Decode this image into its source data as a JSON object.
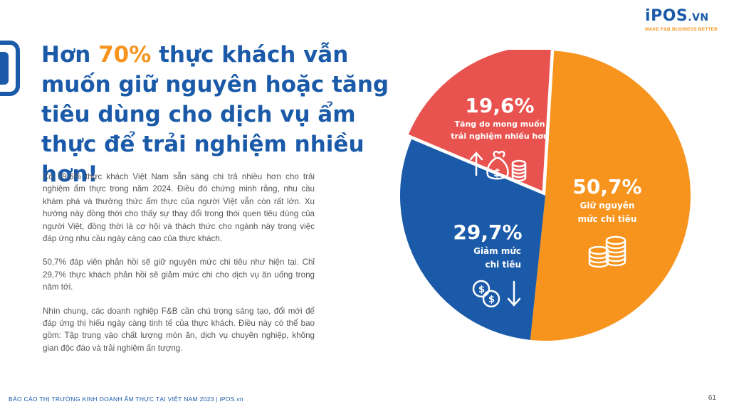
{
  "brand": {
    "logo_text": "iPOS",
    "logo_suffix": ".VN",
    "tagline": "MAKE F&B BUSINESS BETTER"
  },
  "headline": {
    "part1": "Hơn ",
    "highlight": "70%",
    "part2": " thực khách vẫn muốn giữ nguyên hoặc tăng tiêu dùng cho dịch vụ ẩm thực để trải nghiệm nhiều hơn!"
  },
  "body": {
    "p1": "Có 19,6% thực khách Việt Nam sẵn sàng chi trả nhiều hơn cho trải nghiệm ẩm thực trong năm 2024. Điều đó chứng minh rằng, nhu cầu khám phá và thưởng thức ẩm thực của người Việt vẫn còn rất lớn. Xu hướng này đồng thời cho thấy sự thay đổi trong thói quen tiêu dùng của người Việt, đồng thời là cơ hội và thách thức cho ngành này trong việc đáp ứng nhu cầu ngày càng cao của thực khách.",
    "p2": "50,7% đáp viên phản hồi sẽ giữ nguyên mức chi tiêu như hiện tại. Chỉ 29,7% thực khách phản hồi sẽ giảm mức chi cho dịch vụ ăn uống trong năm tới.",
    "p3": "Nhìn chung, các doanh nghiệp F&B cần chú trọng sáng tạo, đổi mới để đáp ứng thị hiếu ngày càng tinh tế của thực khách. Điều này có thể bao gồm: Tập trung vào chất lượng món ăn, dịch vụ chuyên nghiệp, không gian độc đáo và trải nghiệm ấn tượng."
  },
  "chart_data": {
    "type": "pie",
    "slices": [
      {
        "label_pct": "50,7%",
        "label_line1": "Giữ nguyên",
        "label_line2": "mức chi tiêu",
        "value": 50.7,
        "color": "#f7941d",
        "icon": "coins-icon"
      },
      {
        "label_pct": "29,7%",
        "label_line1": "Giảm mức",
        "label_line2": "chi tiêu",
        "value": 29.7,
        "color": "#1a5aa8",
        "icon": "money-down-icon"
      },
      {
        "label_pct": "19,6%",
        "label_line1": "Tăng do mong muốn",
        "label_line2": "trải nghiệm nhiều hơn",
        "value": 19.6,
        "color": "#e8534f",
        "icon": "money-bag-up-icon"
      }
    ]
  },
  "footer": {
    "left": "BÁO CÁO THỊ TRƯỜNG KINH DOANH ẨM THỰC TẠI VIỆT NAM 2023 | iPOS.vn",
    "page": "61"
  }
}
